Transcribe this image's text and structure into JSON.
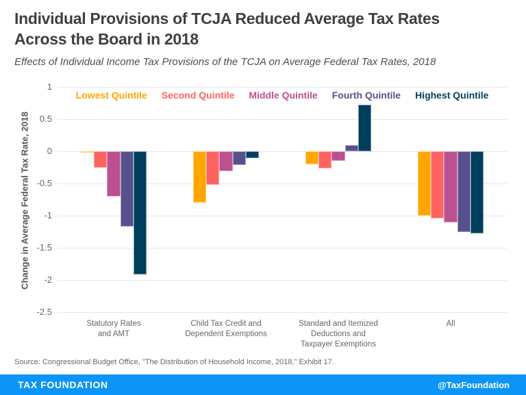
{
  "header": {
    "title_line1": "Individual Provisions of TCJA Reduced Average Tax Rates",
    "title_line2": "Across the Board in 2018",
    "subtitle": "Effects of Individual Income Tax Provisions of the TCJA on Average Federal Tax Rates, 2018"
  },
  "chart_data": {
    "type": "bar",
    "title": "Individual Provisions of TCJA Reduced Average Tax Rates Across the Board in 2018",
    "xlabel": "",
    "ylabel": "Change in Average Federal Tax Rate, 2018",
    "ylim": [
      -2.5,
      1
    ],
    "yticks": [
      "1",
      "0.5",
      "0",
      "-0.5",
      "-1",
      "-1.5",
      "-2",
      "-2.5"
    ],
    "ytick_values": [
      1,
      0.5,
      0,
      -0.5,
      -1,
      -1.5,
      -2,
      -2.5
    ],
    "grid": true,
    "legend_position": "top",
    "categories": [
      "Statutory Rates and AMT",
      "Child Tax Credit and Dependent Exemptions",
      "Standard and Itemized Deductions and Taxpayer Exemptions",
      "All"
    ],
    "category_label_lines": [
      [
        "Statutory Rates",
        "and AMT"
      ],
      [
        "Child Tax Credit and",
        "Dependent Exemptions"
      ],
      [
        "Standard and Itemized",
        "Deductions and",
        "Taxpayer Exemptions"
      ],
      [
        "All"
      ]
    ],
    "series": [
      {
        "name": "Lowest Quintile",
        "color": "#FFA600",
        "values": [
          -0.02,
          -0.8,
          -0.2,
          -1.0
        ]
      },
      {
        "name": "Second Quintile",
        "color": "#FF6361",
        "values": [
          -0.25,
          -0.52,
          -0.27,
          -1.04
        ]
      },
      {
        "name": "Middle Quintile",
        "color": "#BC5090",
        "values": [
          -0.7,
          -0.31,
          -0.15,
          -1.11
        ]
      },
      {
        "name": "Fourth Quintile",
        "color": "#58508D",
        "values": [
          -1.17,
          -0.21,
          0.1,
          -1.25
        ]
      },
      {
        "name": "Highest Quintile",
        "color": "#003F5C",
        "values": [
          -1.92,
          -0.11,
          0.72,
          -1.28
        ]
      }
    ]
  },
  "source": "Source: Congressional Budget Office, \"The Distribution of Household Income, 2018,\" Exhibit 17.",
  "footer": {
    "brand": "TAX FOUNDATION",
    "handle": "@TaxFoundation",
    "bar_color": "#0C95F7"
  }
}
